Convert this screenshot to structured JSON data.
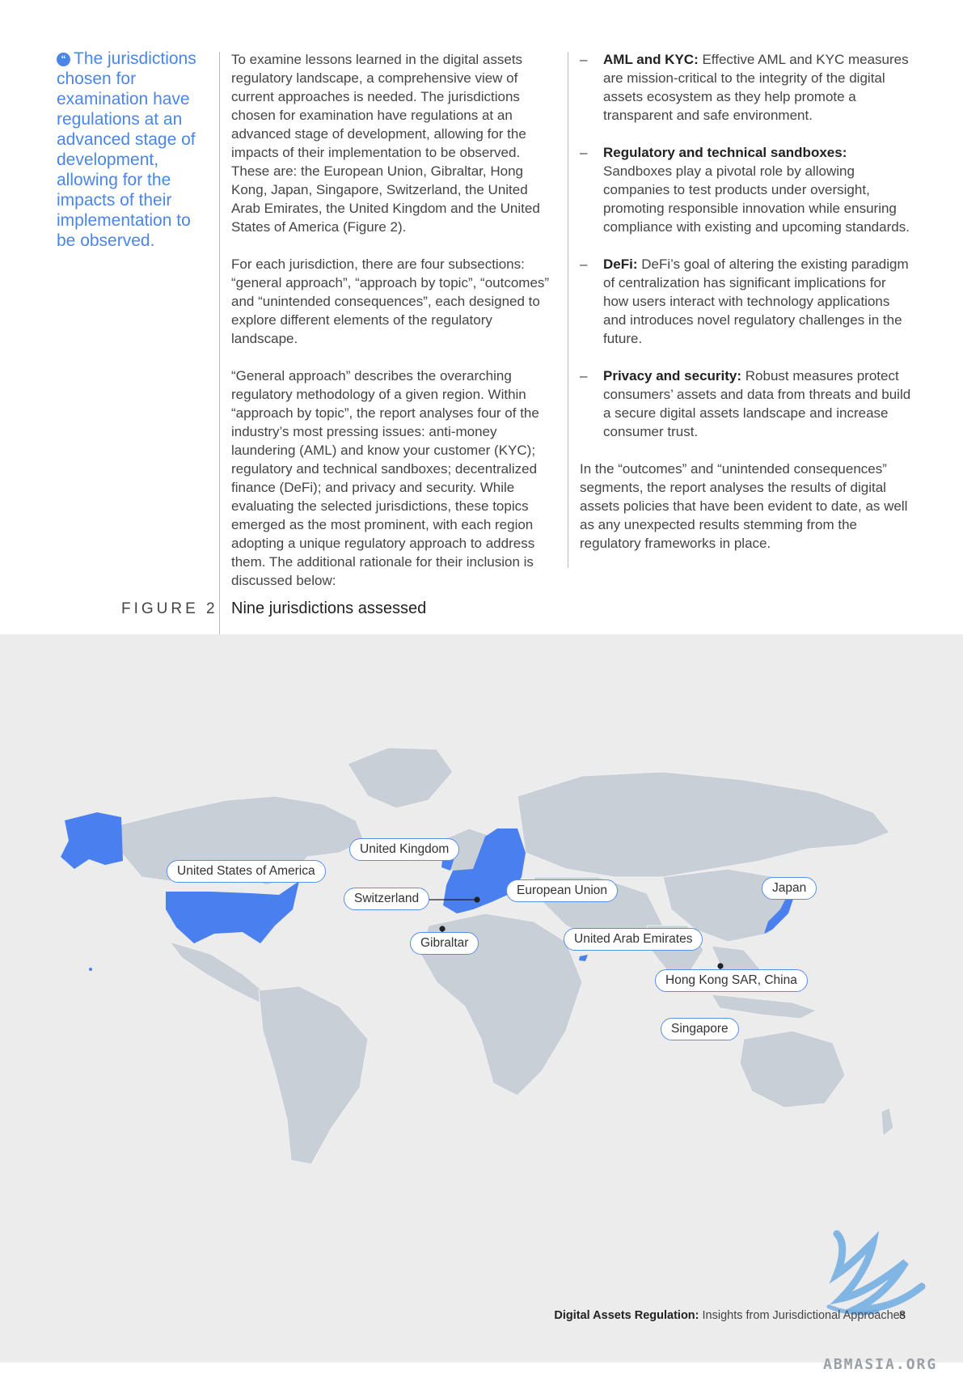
{
  "pull_quote": "The jurisdictions chosen for examination have regulations at an advanced stage of development, allowing for the impacts of their implementation to be observed.",
  "col2": [
    "To examine lessons learned in the digital assets regulatory landscape, a comprehensive view of current approaches is needed. The jurisdictions chosen for examination have regulations at an advanced stage of development, allowing for the impacts of their implementation to be observed. These are: the European Union, Gibraltar, Hong Kong, Japan, Singapore, Switzerland, the United Arab Emirates, the United Kingdom and the United States of America (Figure 2).",
    "For each jurisdiction, there are four subsections: “general approach”, “approach by topic”, “outcomes” and “unintended consequences”, each designed to explore different elements of the regulatory landscape.",
    "“General approach” describes the overarching regulatory methodology of a given region. Within “approach by topic”, the report analyses four of the industry’s most pressing issues: anti-money laundering (AML) and know your customer (KYC); regulatory and technical sandboxes; decentralized finance (DeFi); and privacy and security. While evaluating the selected jurisdictions, these topics emerged as the most prominent, with each region adopting a unique regulatory approach to address them. The additional rationale for their inclusion is discussed below:"
  ],
  "bullets": [
    {
      "dash": "–",
      "term": "AML and KYC:",
      "text": " Effective AML and KYC measures are mission-critical to the integrity of the digital assets ecosystem as they help promote a transparent and safe environment."
    },
    {
      "dash": "–",
      "term": "Regulatory and technical sandboxes:",
      "text": " Sandboxes play a pivotal role by allowing companies to test products under oversight, promoting responsible innovation while ensuring compliance with existing and upcoming standards."
    },
    {
      "dash": "–",
      "term": "DeFi:",
      "text": " DeFi’s goal of altering the existing paradigm of centralization has significant implications for how users interact with technology applications and introduces novel regulatory challenges in the future."
    },
    {
      "dash": "–",
      "term": "Privacy and security:",
      "text": " Robust measures protect consumers’ assets and data from threats and build a secure digital assets landscape and increase consumer trust."
    }
  ],
  "col3_closing": "In the “outcomes” and “unintended consequences” segments, the report analyses the results of digital assets policies that have been evident to date, as well as any unexpected results stemming from the regulatory frameworks in place.",
  "figure": {
    "label": "FIGURE 2",
    "title": "Nine jurisdictions assessed",
    "callouts": {
      "usa": "United States of America",
      "uk": "United Kingdom",
      "switzerland": "Switzerland",
      "eu": "European Union",
      "gibraltar": "Gibraltar",
      "uae": "United Arab Emirates",
      "japan": "Japan",
      "hongkong": "Hong Kong SAR, China",
      "singapore": "Singapore"
    },
    "colors": {
      "highlight": "#4a7ff0",
      "land": "#c9cfd6",
      "background": "#ececec"
    }
  },
  "footer": {
    "bold": "Digital Assets Regulation:",
    "rest": " Insights from Jurisdictional Approaches",
    "page": "8"
  },
  "watermark": "ABMASIA.ORG"
}
